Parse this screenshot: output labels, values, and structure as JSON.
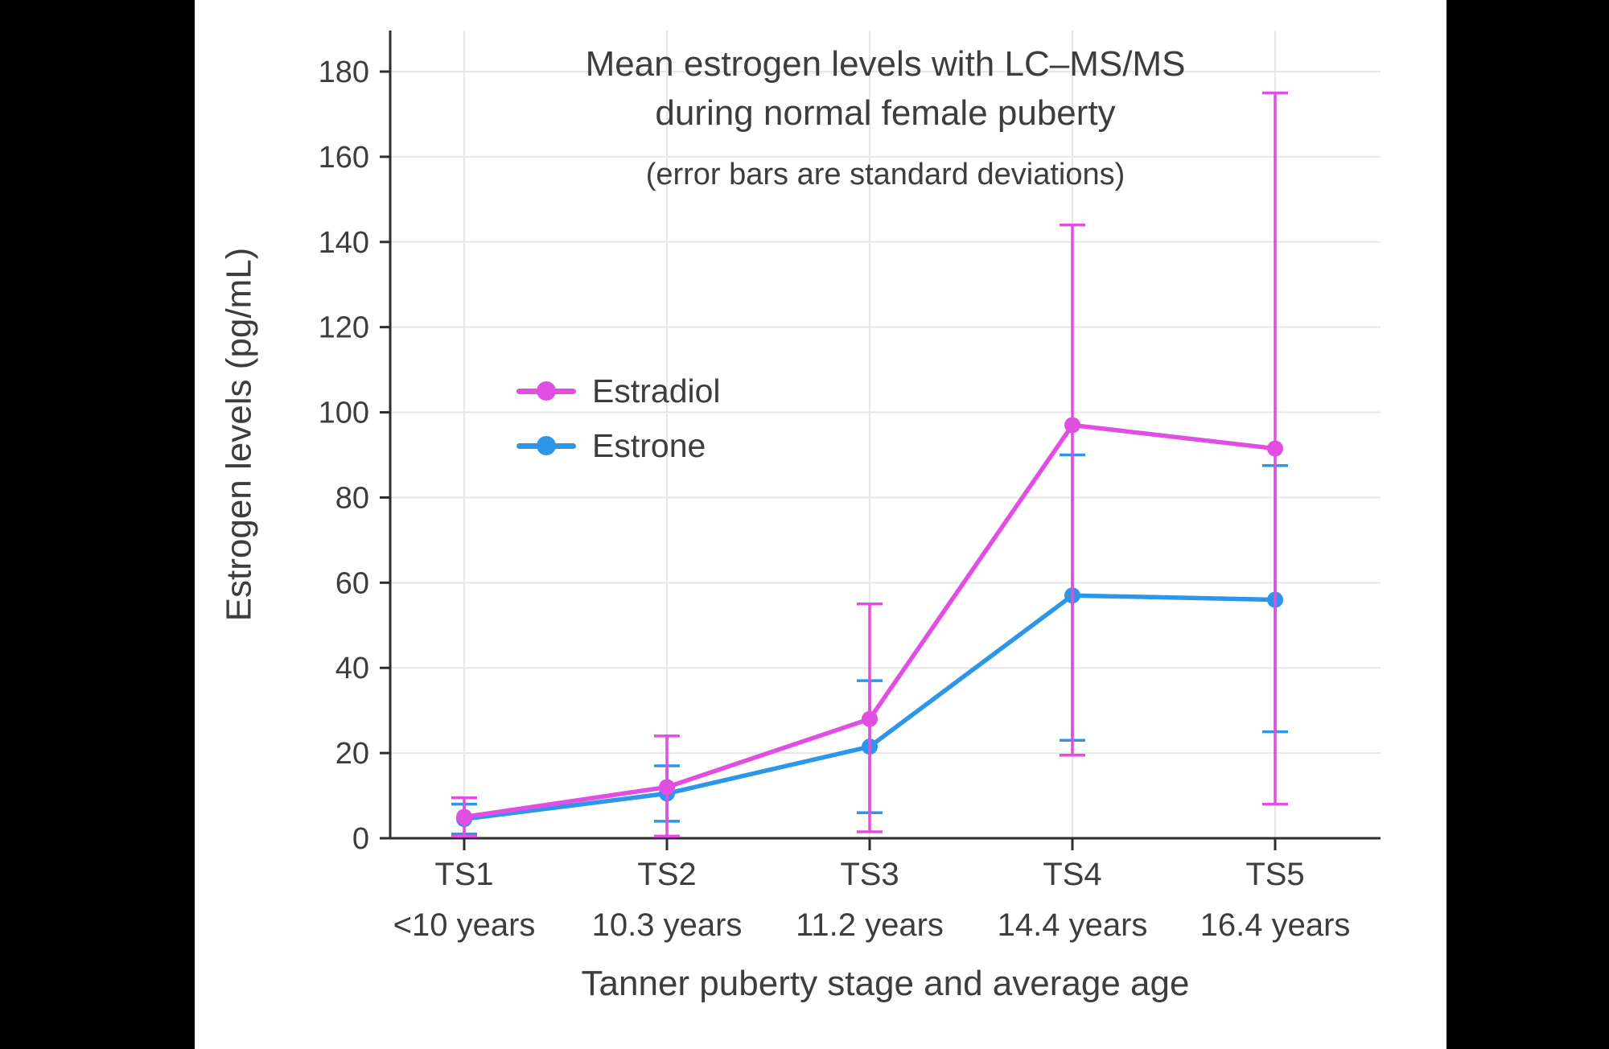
{
  "page": {
    "background": "#000000",
    "canvas_background": "#ffffff"
  },
  "chart": {
    "title_line1": "Mean estrogen levels with LC–MS/MS",
    "title_line2": "during normal female puberty",
    "subtitle": "(error bars are standard deviations)",
    "y_axis_label": "Estrogen levels (pg/mL)",
    "x_axis_label": "Tanner puberty stage and average age"
  },
  "chart_data": {
    "type": "line",
    "title": "Mean estrogen levels with LC–MS/MS during normal female puberty",
    "subtitle": "(error bars are standard deviations)",
    "xlabel": "Tanner puberty stage and average age",
    "ylabel": "Estrogen levels (pg/mL)",
    "categories": [
      "TS1",
      "TS2",
      "TS3",
      "TS4",
      "TS5"
    ],
    "category_sublabels": [
      "<10 years",
      "10.3 years",
      "11.2 years",
      "14.4 years",
      "16.4 years"
    ],
    "ylim": [
      0,
      190
    ],
    "ytick_step": 20,
    "ytick_max": 180,
    "grid": true,
    "legend_position": "inside-upper-left",
    "error_bars": "standard deviations",
    "series": [
      {
        "name": "Estradiol",
        "color": "#E14EE1",
        "values": [
          5,
          12,
          28,
          97,
          91.5
        ],
        "err_low": [
          0.5,
          0.5,
          1.5,
          19.5,
          8
        ],
        "err_high": [
          9.5,
          24,
          55,
          144,
          175
        ]
      },
      {
        "name": "Estrone",
        "color": "#2D96E8",
        "values": [
          4.5,
          10.5,
          21.5,
          57,
          56
        ],
        "err_low": [
          1,
          4,
          6,
          23,
          25
        ],
        "err_high": [
          8,
          17,
          37,
          90,
          87.5
        ]
      }
    ]
  }
}
